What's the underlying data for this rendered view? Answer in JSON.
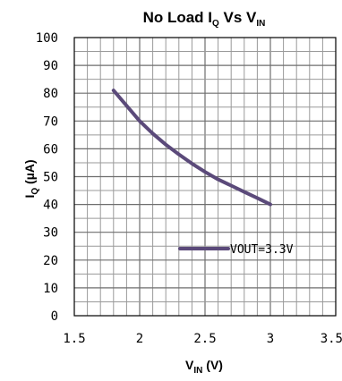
{
  "chart_data": {
    "type": "line",
    "title": {
      "prefix": "No Load I",
      "prefix_sub": "Q",
      "middle": " Vs  V",
      "suffix_sub": "IN"
    },
    "xlabel": {
      "main": "V",
      "sub": "IN",
      "rest": " (V)"
    },
    "ylabel": {
      "main": "I",
      "sub": "Q",
      "rest": " (µA)"
    },
    "xlim": [
      1.5,
      3.5
    ],
    "ylim": [
      0,
      100
    ],
    "x_ticks": [
      1.5,
      2,
      2.5,
      3,
      3.5
    ],
    "x_tick_labels": [
      "1.5",
      "2",
      "2.5",
      "3",
      "3.5"
    ],
    "y_ticks": [
      0,
      10,
      20,
      30,
      40,
      50,
      60,
      70,
      80,
      90,
      100
    ],
    "y_tick_labels": [
      "0",
      "10",
      "20",
      "30",
      "40",
      "50",
      "60",
      "70",
      "80",
      "90",
      "100"
    ],
    "x_minor_step": 0.1,
    "y_minor_step": 5,
    "grid": true,
    "legend_position": "bottom-right",
    "series": [
      {
        "name": "VOUT=3.3V",
        "color": "#5b4a7a",
        "x": [
          1.8,
          1.9,
          2.0,
          2.1,
          2.2,
          2.3,
          2.4,
          2.5,
          2.6,
          2.7,
          2.8,
          2.9,
          3.0
        ],
        "y": [
          81,
          75.5,
          70,
          65.5,
          61.5,
          58,
          54.7,
          51.7,
          49,
          46.8,
          44.5,
          42.3,
          40
        ]
      }
    ]
  }
}
